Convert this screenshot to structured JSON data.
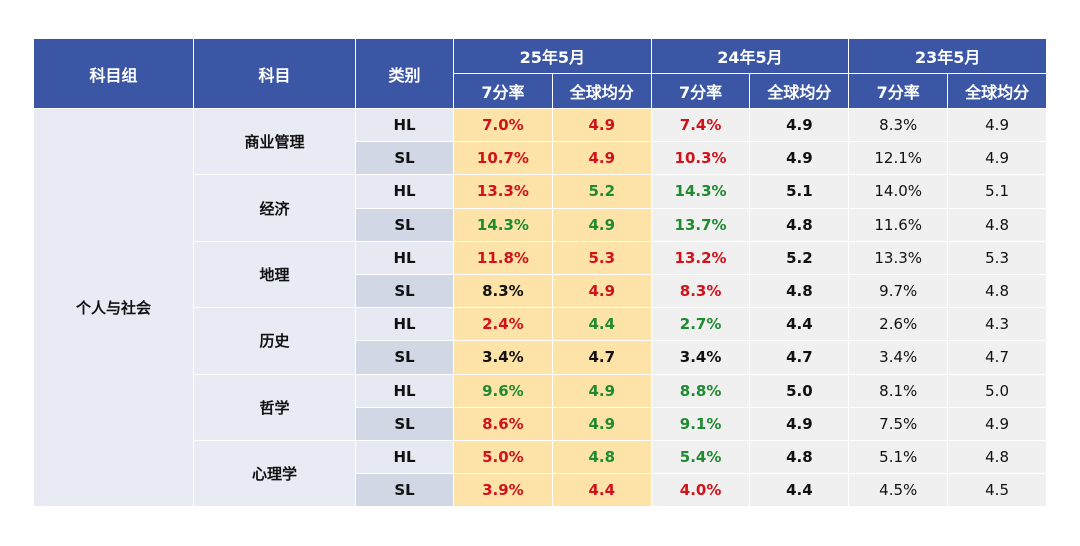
{
  "headers": {
    "group": "科目组",
    "subject": "科目",
    "level": "类别",
    "years": [
      "25年5月",
      "24年5月",
      "23年5月"
    ],
    "rate": "7分率",
    "avg": "全球均分"
  },
  "colors": {
    "header": "#3a56a5",
    "highlight_2025": "#fde3a8",
    "red": "#d0121b",
    "green": "#1f8a2f",
    "black": "#111111"
  },
  "group": "个人与社会",
  "subjects": [
    {
      "name": "商业管理",
      "rows": [
        {
          "level": "HL",
          "cells": [
            {
              "v": "7.0%",
              "c": "red"
            },
            {
              "v": "4.9",
              "c": "red"
            },
            {
              "v": "7.4%",
              "c": "red"
            },
            {
              "v": "4.9",
              "c": "black"
            },
            {
              "v": "8.3%",
              "c": "black"
            },
            {
              "v": "4.9",
              "c": "black"
            }
          ]
        },
        {
          "level": "SL",
          "cells": [
            {
              "v": "10.7%",
              "c": "red"
            },
            {
              "v": "4.9",
              "c": "red"
            },
            {
              "v": "10.3%",
              "c": "red"
            },
            {
              "v": "4.9",
              "c": "black"
            },
            {
              "v": "12.1%",
              "c": "black"
            },
            {
              "v": "4.9",
              "c": "black"
            }
          ]
        }
      ]
    },
    {
      "name": "经济",
      "rows": [
        {
          "level": "HL",
          "cells": [
            {
              "v": "13.3%",
              "c": "red"
            },
            {
              "v": "5.2",
              "c": "green"
            },
            {
              "v": "14.3%",
              "c": "green"
            },
            {
              "v": "5.1",
              "c": "black"
            },
            {
              "v": "14.0%",
              "c": "black"
            },
            {
              "v": "5.1",
              "c": "black"
            }
          ]
        },
        {
          "level": "SL",
          "cells": [
            {
              "v": "14.3%",
              "c": "green"
            },
            {
              "v": "4.9",
              "c": "green"
            },
            {
              "v": "13.7%",
              "c": "green"
            },
            {
              "v": "4.8",
              "c": "black"
            },
            {
              "v": "11.6%",
              "c": "black"
            },
            {
              "v": "4.8",
              "c": "black"
            }
          ]
        }
      ]
    },
    {
      "name": "地理",
      "rows": [
        {
          "level": "HL",
          "cells": [
            {
              "v": "11.8%",
              "c": "red"
            },
            {
              "v": "5.3",
              "c": "red"
            },
            {
              "v": "13.2%",
              "c": "red"
            },
            {
              "v": "5.2",
              "c": "black"
            },
            {
              "v": "13.3%",
              "c": "black"
            },
            {
              "v": "5.3",
              "c": "black"
            }
          ]
        },
        {
          "level": "SL",
          "cells": [
            {
              "v": "8.3%",
              "c": "black"
            },
            {
              "v": "4.9",
              "c": "red"
            },
            {
              "v": "8.3%",
              "c": "red"
            },
            {
              "v": "4.8",
              "c": "black"
            },
            {
              "v": "9.7%",
              "c": "black"
            },
            {
              "v": "4.8",
              "c": "black"
            }
          ]
        }
      ]
    },
    {
      "name": "历史",
      "rows": [
        {
          "level": "HL",
          "cells": [
            {
              "v": "2.4%",
              "c": "red"
            },
            {
              "v": "4.4",
              "c": "green"
            },
            {
              "v": "2.7%",
              "c": "green"
            },
            {
              "v": "4.4",
              "c": "black"
            },
            {
              "v": "2.6%",
              "c": "black"
            },
            {
              "v": "4.3",
              "c": "black"
            }
          ]
        },
        {
          "level": "SL",
          "cells": [
            {
              "v": "3.4%",
              "c": "black"
            },
            {
              "v": "4.7",
              "c": "black"
            },
            {
              "v": "3.4%",
              "c": "black"
            },
            {
              "v": "4.7",
              "c": "black"
            },
            {
              "v": "3.4%",
              "c": "black"
            },
            {
              "v": "4.7",
              "c": "black"
            }
          ]
        }
      ]
    },
    {
      "name": "哲学",
      "rows": [
        {
          "level": "HL",
          "cells": [
            {
              "v": "9.6%",
              "c": "green"
            },
            {
              "v": "4.9",
              "c": "green"
            },
            {
              "v": "8.8%",
              "c": "green"
            },
            {
              "v": "5.0",
              "c": "black"
            },
            {
              "v": "8.1%",
              "c": "black"
            },
            {
              "v": "5.0",
              "c": "black"
            }
          ]
        },
        {
          "level": "SL",
          "cells": [
            {
              "v": "8.6%",
              "c": "red"
            },
            {
              "v": "4.9",
              "c": "green"
            },
            {
              "v": "9.1%",
              "c": "green"
            },
            {
              "v": "4.9",
              "c": "black"
            },
            {
              "v": "7.5%",
              "c": "black"
            },
            {
              "v": "4.9",
              "c": "black"
            }
          ]
        }
      ]
    },
    {
      "name": "心理学",
      "rows": [
        {
          "level": "HL",
          "cells": [
            {
              "v": "5.0%",
              "c": "red"
            },
            {
              "v": "4.8",
              "c": "green"
            },
            {
              "v": "5.4%",
              "c": "green"
            },
            {
              "v": "4.8",
              "c": "black"
            },
            {
              "v": "5.1%",
              "c": "black"
            },
            {
              "v": "4.8",
              "c": "black"
            }
          ]
        },
        {
          "level": "SL",
          "cells": [
            {
              "v": "3.9%",
              "c": "red"
            },
            {
              "v": "4.4",
              "c": "red"
            },
            {
              "v": "4.0%",
              "c": "red"
            },
            {
              "v": "4.4",
              "c": "black"
            },
            {
              "v": "4.5%",
              "c": "black"
            },
            {
              "v": "4.5",
              "c": "black"
            }
          ]
        }
      ]
    }
  ]
}
